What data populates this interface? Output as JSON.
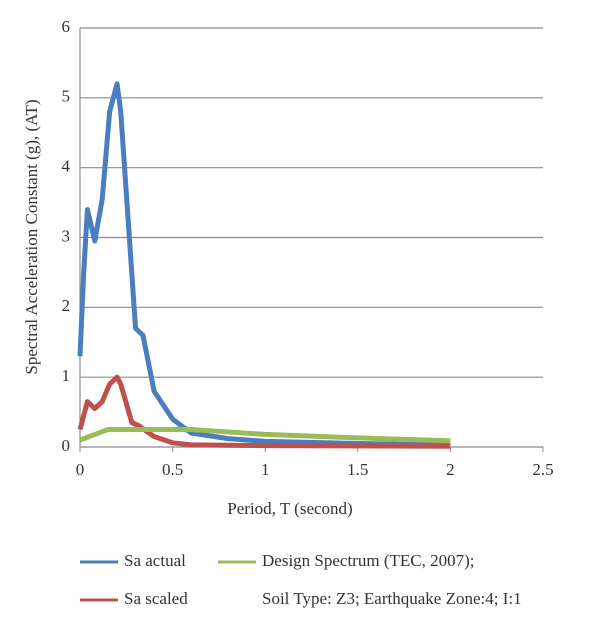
{
  "chart_data": {
    "type": "line",
    "xlabel": "Period, T (second)",
    "ylabel": "Spectral Acceleration Constant (g), (AT)",
    "xlim": [
      0,
      2.5
    ],
    "xticks": [
      0,
      0.5,
      1,
      1.5,
      2,
      2.5
    ],
    "ylim": [
      0,
      6
    ],
    "yticks": [
      0,
      1,
      2,
      3,
      4,
      5,
      6
    ],
    "grid": true,
    "series": [
      {
        "name": "Sa actual",
        "color": "#4a7ebf",
        "x": [
          0,
          0.02,
          0.04,
          0.08,
          0.12,
          0.16,
          0.2,
          0.22,
          0.3,
          0.34,
          0.4,
          0.5,
          0.6,
          0.8,
          1.0,
          1.5,
          2.0
        ],
        "values": [
          1.3,
          2.5,
          3.4,
          2.95,
          3.55,
          4.8,
          5.2,
          4.8,
          1.7,
          1.6,
          0.8,
          0.4,
          0.2,
          0.12,
          0.08,
          0.05,
          0.03
        ]
      },
      {
        "name": "Sa scaled",
        "color": "#c0504d",
        "x": [
          0,
          0.04,
          0.08,
          0.12,
          0.16,
          0.2,
          0.22,
          0.28,
          0.32,
          0.4,
          0.5,
          0.6,
          1.0,
          2.0
        ],
        "values": [
          0.25,
          0.65,
          0.55,
          0.65,
          0.9,
          1.0,
          0.9,
          0.35,
          0.3,
          0.15,
          0.06,
          0.03,
          0.02,
          0.01
        ]
      },
      {
        "name": "Design Spectrum (TEC, 2007);",
        "note": "Soil Type: Z3; Earthquake Zone:4; I:1",
        "color": "#9bbb59",
        "x": [
          0,
          0.1,
          0.15,
          0.6,
          1.0,
          1.5,
          2.0
        ],
        "values": [
          0.1,
          0.2,
          0.25,
          0.25,
          0.18,
          0.13,
          0.09
        ]
      }
    ]
  }
}
